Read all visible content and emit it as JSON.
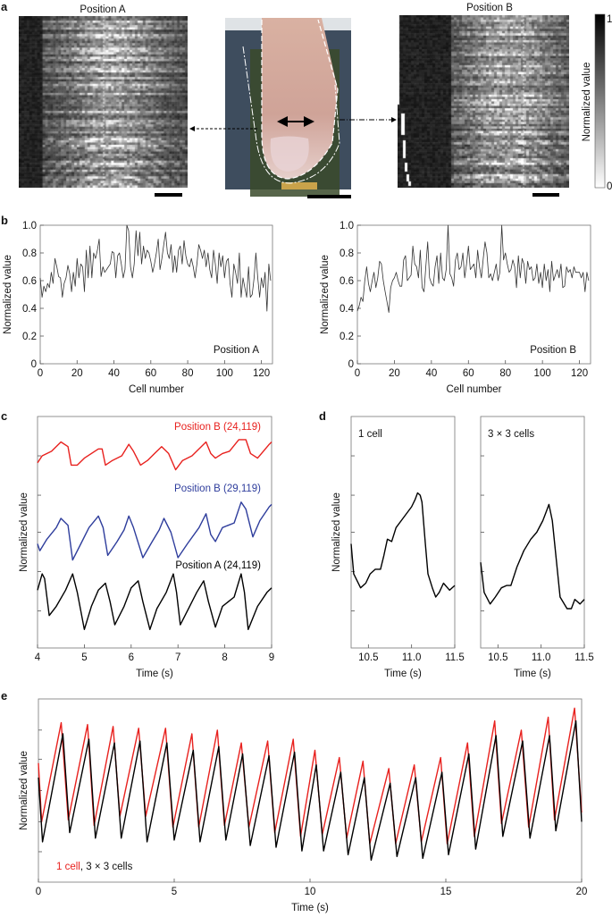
{
  "panel_labels": {
    "a": "a",
    "b": "b",
    "c": "c",
    "d": "d",
    "e": "e"
  },
  "panel_a": {
    "title_left": "Position A",
    "title_right": "Position B",
    "colorbar": {
      "label": "Normalized value",
      "max_label": "1",
      "min_label": "0",
      "top_color": "#000000",
      "bottom_color": "#ffffff"
    },
    "arrow_color": "#000000"
  },
  "chart_data": [
    {
      "id": "b-left",
      "panel": "b",
      "type": "line",
      "xlabel": "Cell number",
      "ylabel": "Normalized value",
      "xlim": [
        0,
        126
      ],
      "ylim": [
        0,
        1
      ],
      "xticks": [
        0,
        20,
        40,
        60,
        80,
        100,
        120
      ],
      "xtick_labels": [
        "0",
        "20",
        "40",
        "60",
        "80",
        "100",
        "120"
      ],
      "yticks": [
        0,
        0.2,
        0.4,
        0.6,
        0.8,
        1.0
      ],
      "ytick_labels": [
        "0",
        "0.2",
        "0.4",
        "0.6",
        "0.8",
        "1.0"
      ],
      "annotation": "Position A",
      "grid": false,
      "series": [
        {
          "color": "#333333",
          "values": [
            0.62,
            0.48,
            0.56,
            0.52,
            0.58,
            0.55,
            0.66,
            0.58,
            0.76,
            0.7,
            0.63,
            0.62,
            0.48,
            0.58,
            0.62,
            0.71,
            0.65,
            0.52,
            0.66,
            0.56,
            0.76,
            0.62,
            0.72,
            0.7,
            0.52,
            0.82,
            0.62,
            0.85,
            0.62,
            0.8,
            0.76,
            0.82,
            0.9,
            0.63,
            0.7,
            0.66,
            0.68,
            0.7,
            0.72,
            0.81,
            0.8,
            0.62,
            0.78,
            0.8,
            0.72,
            0.62,
            0.68,
            1.0,
            0.96,
            0.7,
            0.62,
            0.72,
            0.96,
            0.78,
            0.95,
            0.72,
            0.85,
            0.76,
            0.82,
            0.8,
            0.74,
            0.66,
            0.72,
            0.8,
            0.9,
            0.68,
            0.76,
            0.86,
            0.95,
            0.8,
            0.76,
            0.86,
            0.66,
            0.78,
            0.66,
            0.82,
            0.85,
            0.72,
            0.89,
            0.78,
            0.72,
            0.7,
            0.76,
            0.7,
            0.62,
            0.72,
            0.86,
            0.82,
            0.76,
            0.82,
            0.7,
            0.8,
            0.68,
            0.62,
            0.82,
            0.72,
            0.58,
            0.8,
            0.7,
            0.78,
            0.62,
            0.74,
            0.76,
            0.58,
            0.48,
            0.72,
            0.66,
            0.58,
            0.8,
            0.48,
            0.62,
            0.55,
            0.48,
            0.7,
            0.48,
            0.5,
            0.62,
            0.8,
            0.62,
            0.48,
            0.62,
            0.55,
            0.66,
            0.38,
            0.72,
            0.6
          ]
        }
      ]
    },
    {
      "id": "b-right",
      "panel": "b",
      "type": "line",
      "xlabel": "Cell number",
      "ylabel": "Normalized value",
      "xlim": [
        0,
        126
      ],
      "ylim": [
        0,
        1
      ],
      "xticks": [
        0,
        20,
        40,
        60,
        80,
        100,
        120
      ],
      "xtick_labels": [
        "0",
        "20",
        "40",
        "60",
        "80",
        "100",
        "120"
      ],
      "yticks": [
        0,
        0.2,
        0.4,
        0.6,
        0.8,
        1.0
      ],
      "ytick_labels": [
        "0",
        "0.2",
        "0.4",
        "0.6",
        "0.8",
        "1.0"
      ],
      "annotation": "Position B",
      "grid": false,
      "series": [
        {
          "color": "#333333",
          "values": [
            0.38,
            0.42,
            0.48,
            0.45,
            0.6,
            0.7,
            0.58,
            0.52,
            0.6,
            0.66,
            0.55,
            0.62,
            0.74,
            0.72,
            0.6,
            0.52,
            0.45,
            0.37,
            0.55,
            0.6,
            0.62,
            0.66,
            0.6,
            0.56,
            0.56,
            0.75,
            0.78,
            0.6,
            0.62,
            0.64,
            0.85,
            0.72,
            0.7,
            0.62,
            0.82,
            0.55,
            0.52,
            0.7,
            0.88,
            0.62,
            0.58,
            0.56,
            0.7,
            0.78,
            0.58,
            0.8,
            0.62,
            0.6,
            0.68,
            1.0,
            0.65,
            0.62,
            0.56,
            0.75,
            0.8,
            0.68,
            0.7,
            0.8,
            0.62,
            0.72,
            0.85,
            0.68,
            0.7,
            0.72,
            0.62,
            0.82,
            0.7,
            0.62,
            0.76,
            0.88,
            0.8,
            0.62,
            0.65,
            0.6,
            0.66,
            0.72,
            0.6,
            0.66,
            1.0,
            0.75,
            0.8,
            0.72,
            0.66,
            0.68,
            0.75,
            0.7,
            0.55,
            0.78,
            0.62,
            0.76,
            0.72,
            0.58,
            0.74,
            0.68,
            0.7,
            0.6,
            0.62,
            0.72,
            0.58,
            0.66,
            0.55,
            0.72,
            0.6,
            0.68,
            0.52,
            0.74,
            0.6,
            0.64,
            0.68,
            0.62,
            0.72,
            0.55,
            0.56,
            0.7,
            0.66,
            0.68,
            0.62,
            0.7,
            0.66,
            0.66,
            0.66,
            0.62,
            0.66,
            0.52,
            0.66,
            0.6
          ]
        }
      ]
    },
    {
      "id": "c",
      "panel": "c",
      "type": "line",
      "xlabel": "Time (s)",
      "ylabel": "Normalized value",
      "xlim": [
        4,
        9
      ],
      "ylim": [
        0,
        1
      ],
      "xticks": [
        4,
        5,
        6,
        7,
        8,
        9
      ],
      "xtick_labels": [
        "4",
        "5",
        "6",
        "7",
        "8",
        "9"
      ],
      "yticks": [
        0.16,
        0.33,
        0.5,
        0.66,
        0.83
      ],
      "ytick_labels": [],
      "series": [
        {
          "name": "Position B (24,119)",
          "color": "#e8211e",
          "x": [
            4.0,
            4.1,
            4.3,
            4.5,
            4.65,
            4.72,
            4.85,
            5.0,
            5.3,
            5.38,
            5.45,
            5.6,
            5.8,
            5.95,
            6.05,
            6.2,
            6.35,
            6.5,
            6.65,
            6.8,
            6.95,
            7.1,
            7.3,
            7.6,
            7.7,
            7.8,
            7.95,
            8.1,
            8.3,
            8.45,
            8.55,
            8.7,
            8.95,
            9.0
          ],
          "y": [
            0.8,
            0.83,
            0.85,
            0.89,
            0.87,
            0.79,
            0.79,
            0.82,
            0.86,
            0.86,
            0.79,
            0.81,
            0.83,
            0.88,
            0.85,
            0.79,
            0.81,
            0.84,
            0.87,
            0.84,
            0.77,
            0.81,
            0.83,
            0.89,
            0.84,
            0.82,
            0.84,
            0.85,
            0.9,
            0.9,
            0.84,
            0.82,
            0.88,
            0.89
          ]
        },
        {
          "name": "Position B (29,119)",
          "color": "#2e3d9c",
          "x": [
            4.0,
            4.05,
            4.2,
            4.4,
            4.5,
            4.65,
            4.75,
            4.9,
            5.1,
            5.3,
            5.4,
            5.5,
            5.7,
            5.85,
            5.95,
            6.05,
            6.25,
            6.45,
            6.6,
            6.7,
            6.85,
            7.0,
            7.2,
            7.45,
            7.6,
            7.7,
            7.8,
            7.95,
            8.2,
            8.35,
            8.45,
            8.6,
            8.75,
            8.95,
            9.0
          ],
          "y": [
            0.45,
            0.42,
            0.47,
            0.52,
            0.56,
            0.53,
            0.38,
            0.44,
            0.52,
            0.57,
            0.52,
            0.4,
            0.46,
            0.51,
            0.57,
            0.52,
            0.39,
            0.46,
            0.51,
            0.56,
            0.5,
            0.39,
            0.45,
            0.52,
            0.58,
            0.49,
            0.46,
            0.52,
            0.54,
            0.63,
            0.6,
            0.48,
            0.55,
            0.61,
            0.62
          ]
        },
        {
          "name": "Position A (24,119)",
          "color": "#000000",
          "x": [
            4.0,
            4.1,
            4.15,
            4.25,
            4.4,
            4.6,
            4.75,
            4.85,
            5.0,
            5.15,
            5.3,
            5.45,
            5.55,
            5.65,
            5.85,
            6.0,
            6.15,
            6.25,
            6.4,
            6.55,
            6.75,
            6.9,
            6.97,
            7.05,
            7.25,
            7.4,
            7.55,
            7.65,
            7.8,
            7.95,
            8.2,
            8.35,
            8.42,
            8.5,
            8.7,
            8.9,
            9.0
          ],
          "y": [
            0.25,
            0.32,
            0.3,
            0.14,
            0.18,
            0.25,
            0.32,
            0.24,
            0.08,
            0.18,
            0.25,
            0.28,
            0.2,
            0.1,
            0.18,
            0.26,
            0.29,
            0.2,
            0.08,
            0.17,
            0.24,
            0.32,
            0.24,
            0.1,
            0.18,
            0.24,
            0.29,
            0.2,
            0.09,
            0.18,
            0.22,
            0.32,
            0.24,
            0.08,
            0.18,
            0.24,
            0.26
          ]
        }
      ]
    },
    {
      "id": "d-left",
      "panel": "d",
      "type": "line",
      "xlabel": "Time (s)",
      "ylabel": "Normalized value",
      "xlim": [
        10.3,
        11.5
      ],
      "ylim": [
        0,
        1
      ],
      "xticks": [
        10.5,
        11.0,
        11.5
      ],
      "xtick_labels": [
        "10.5",
        "11.0",
        "11.5"
      ],
      "yticks": [
        0.16,
        0.33,
        0.5,
        0.66,
        0.83
      ],
      "ytick_labels": [],
      "annotation": "1 cell",
      "series": [
        {
          "color": "#000000",
          "x": [
            10.3,
            10.33,
            10.41,
            10.47,
            10.52,
            10.58,
            10.64,
            10.68,
            10.72,
            10.77,
            10.82,
            10.9,
            11.0,
            11.04,
            11.07,
            11.1,
            11.12,
            11.16,
            11.19,
            11.24,
            11.28,
            11.32,
            11.37,
            11.44,
            11.5
          ],
          "y": [
            0.45,
            0.32,
            0.26,
            0.28,
            0.32,
            0.34,
            0.34,
            0.4,
            0.47,
            0.46,
            0.52,
            0.56,
            0.61,
            0.64,
            0.67,
            0.66,
            0.63,
            0.45,
            0.32,
            0.26,
            0.22,
            0.24,
            0.28,
            0.25,
            0.27
          ]
        }
      ]
    },
    {
      "id": "d-right",
      "panel": "d",
      "type": "line",
      "xlabel": "Time (s)",
      "ylabel": "Normalized value",
      "xlim": [
        10.3,
        11.5
      ],
      "ylim": [
        0,
        1
      ],
      "xticks": [
        10.5,
        11.0,
        11.5
      ],
      "xtick_labels": [
        "10.5",
        "11.0",
        "11.5"
      ],
      "yticks": [
        0.16,
        0.33,
        0.5,
        0.66,
        0.83
      ],
      "ytick_labels": [],
      "annotation": "3 × 3 cells",
      "series": [
        {
          "color": "#000000",
          "x": [
            10.3,
            10.34,
            10.41,
            10.47,
            10.54,
            10.6,
            10.65,
            10.72,
            10.8,
            10.88,
            10.95,
            11.02,
            11.06,
            11.09,
            11.13,
            11.16,
            11.22,
            11.3,
            11.35,
            11.39,
            11.45,
            11.5
          ],
          "y": [
            0.37,
            0.24,
            0.19,
            0.22,
            0.26,
            0.27,
            0.27,
            0.35,
            0.42,
            0.47,
            0.5,
            0.55,
            0.59,
            0.62,
            0.55,
            0.44,
            0.22,
            0.17,
            0.17,
            0.21,
            0.19,
            0.21
          ]
        }
      ]
    },
    {
      "id": "e",
      "panel": "e",
      "type": "line",
      "xlabel": "Time (s)",
      "ylabel": "Normalized value",
      "xlim": [
        0,
        20
      ],
      "ylim": [
        0,
        1
      ],
      "xticks": [
        0,
        5,
        10,
        15,
        20
      ],
      "xtick_labels": [
        "0",
        "5",
        "10",
        "15",
        "20"
      ],
      "yticks": [
        0.166,
        0.33,
        0.5,
        0.67,
        0.83
      ],
      "ytick_labels": [],
      "legend": {
        "placement": "bottom-left",
        "label_1": "1 cell",
        "separator": ",",
        "label_2": " 3 × 3 cells"
      },
      "series": [
        {
          "name": "1 cell",
          "color": "#e8211e",
          "x": [
            0,
            0.12,
            0.84,
            1.1,
            1.81,
            2.05,
            2.75,
            3.0,
            3.69,
            3.95,
            4.68,
            4.95,
            5.65,
            5.9,
            6.59,
            6.85,
            7.47,
            7.75,
            8.44,
            8.7,
            9.38,
            9.65,
            10.18,
            10.45,
            11.08,
            11.35,
            11.95,
            12.2,
            12.9,
            13.15,
            13.84,
            14.1,
            14.81,
            15.05,
            15.8,
            16.05,
            16.8,
            17.05,
            17.78,
            18.05,
            18.77,
            19.0,
            19.74,
            20
          ],
          "y": [
            0.65,
            0.33,
            0.87,
            0.34,
            0.86,
            0.31,
            0.85,
            0.36,
            0.84,
            0.36,
            0.84,
            0.3,
            0.81,
            0.3,
            0.83,
            0.31,
            0.76,
            0.3,
            0.77,
            0.27,
            0.78,
            0.25,
            0.72,
            0.26,
            0.68,
            0.24,
            0.66,
            0.21,
            0.62,
            0.21,
            0.64,
            0.22,
            0.68,
            0.21,
            0.76,
            0.25,
            0.88,
            0.32,
            0.83,
            0.3,
            0.9,
            0.34,
            0.95,
            0.38
          ]
        },
        {
          "name": "3 × 3 cells",
          "color": "#000000",
          "x": [
            0,
            0.15,
            0.9,
            1.15,
            1.86,
            2.1,
            2.8,
            3.05,
            3.74,
            4.0,
            4.73,
            5.0,
            5.7,
            5.95,
            6.64,
            6.9,
            7.52,
            7.8,
            8.49,
            8.75,
            9.43,
            9.7,
            10.23,
            10.5,
            11.13,
            11.4,
            12.0,
            12.25,
            12.95,
            13.2,
            13.89,
            14.15,
            14.86,
            15.1,
            15.85,
            16.1,
            16.85,
            17.1,
            17.83,
            18.1,
            18.82,
            19.05,
            19.79,
            20
          ],
          "y": [
            0.57,
            0.22,
            0.81,
            0.27,
            0.78,
            0.24,
            0.76,
            0.24,
            0.77,
            0.22,
            0.76,
            0.23,
            0.72,
            0.22,
            0.74,
            0.23,
            0.7,
            0.2,
            0.69,
            0.19,
            0.71,
            0.17,
            0.64,
            0.17,
            0.6,
            0.15,
            0.57,
            0.12,
            0.54,
            0.14,
            0.57,
            0.13,
            0.6,
            0.15,
            0.7,
            0.18,
            0.8,
            0.25,
            0.77,
            0.24,
            0.8,
            0.28,
            0.88,
            0.33
          ]
        }
      ]
    }
  ]
}
